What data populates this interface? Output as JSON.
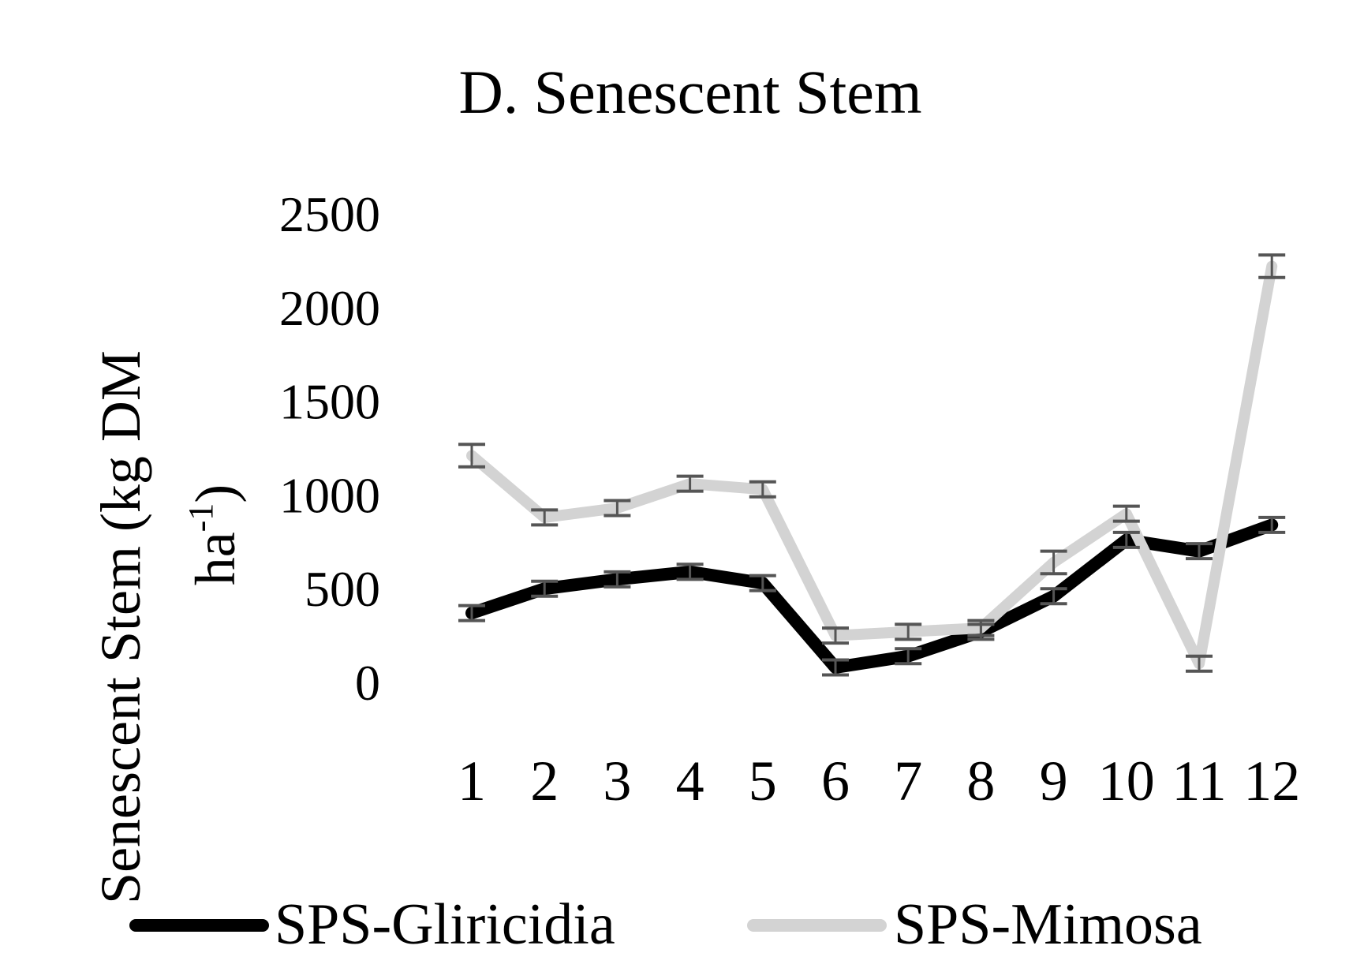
{
  "chart_data": {
    "type": "line",
    "title": "D. Senescent Stem",
    "ylabel_line1": "Senescent Stem (kg DM",
    "ylabel_line2": "ha",
    "ylabel_sup": "-1",
    "ylabel_close": ")",
    "xlabel": "",
    "categories": [
      "1",
      "2",
      "3",
      "4",
      "5",
      "6",
      "7",
      "8",
      "9",
      "10",
      "11",
      "12"
    ],
    "ylim": [
      0,
      2500
    ],
    "yticks": [
      0,
      500,
      1000,
      1500,
      2000,
      2500
    ],
    "ytick_labels": [
      "0",
      "500",
      "1000",
      "1500",
      "2000",
      "2500"
    ],
    "grid": false,
    "legend_position": "bottom",
    "series": [
      {
        "name": "SPS-Gliricidia",
        "color": "#000000",
        "values": [
          370,
          500,
          550,
          590,
          530,
          80,
          140,
          270,
          460,
          760,
          700,
          840
        ],
        "errors": [
          40,
          40,
          40,
          40,
          40,
          40,
          40,
          40,
          40,
          40,
          40,
          40
        ]
      },
      {
        "name": "SPS-Mimosa",
        "color": "#d3d3d3",
        "values": [
          1210,
          880,
          930,
          1060,
          1030,
          250,
          270,
          290,
          640,
          900,
          100,
          2220
        ],
        "errors": [
          60,
          40,
          40,
          40,
          40,
          40,
          40,
          40,
          60,
          40,
          40,
          60
        ]
      }
    ]
  }
}
